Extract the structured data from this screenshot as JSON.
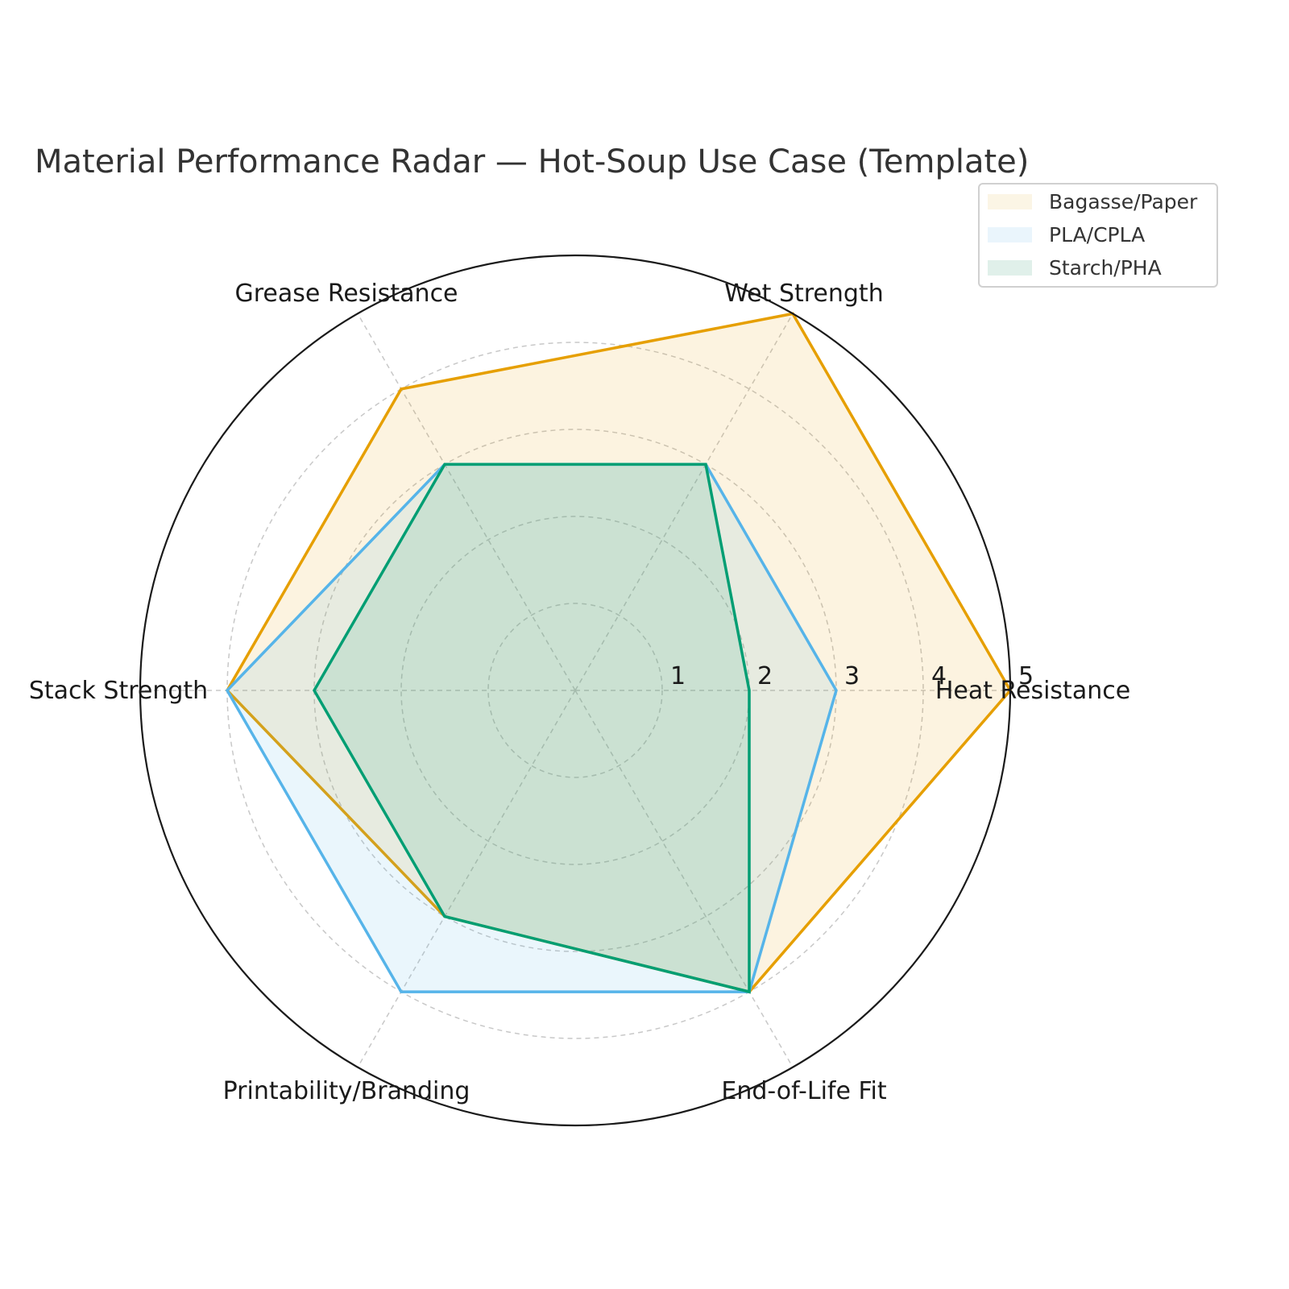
{
  "title": "Material Performance Radar — Hot-Soup Use Case (Template)",
  "chart_data": {
    "type": "radar",
    "title": "Material Performance Radar — Hot-Soup Use Case (Template)",
    "categories": [
      "Heat Resistance",
      "Wet Strength",
      "Grease Resistance",
      "Stack Strength",
      "Printability/Branding",
      "End-of-Life Fit"
    ],
    "series": [
      {
        "name": "Bagasse/Paper",
        "values": [
          5,
          5,
          4,
          4,
          3,
          4
        ],
        "color": "#E69F00"
      },
      {
        "name": "PLA/CPLA",
        "values": [
          3,
          3,
          3,
          4,
          4,
          4
        ],
        "color": "#56B4E9"
      },
      {
        "name": "Starch/PHA",
        "values": [
          2,
          3,
          3,
          3,
          3,
          4
        ],
        "color": "#009E73"
      }
    ],
    "radial_ticks": [
      "1",
      "2",
      "3",
      "4",
      "5"
    ],
    "rlim": [
      0,
      5
    ],
    "grid": true,
    "legend_position": "upper right"
  },
  "legend": {
    "items": [
      {
        "label": "Bagasse/Paper",
        "color": "#E69F00"
      },
      {
        "label": "PLA/CPLA",
        "color": "#56B4E9"
      },
      {
        "label": "Starch/PHA",
        "color": "#009E73"
      }
    ]
  }
}
